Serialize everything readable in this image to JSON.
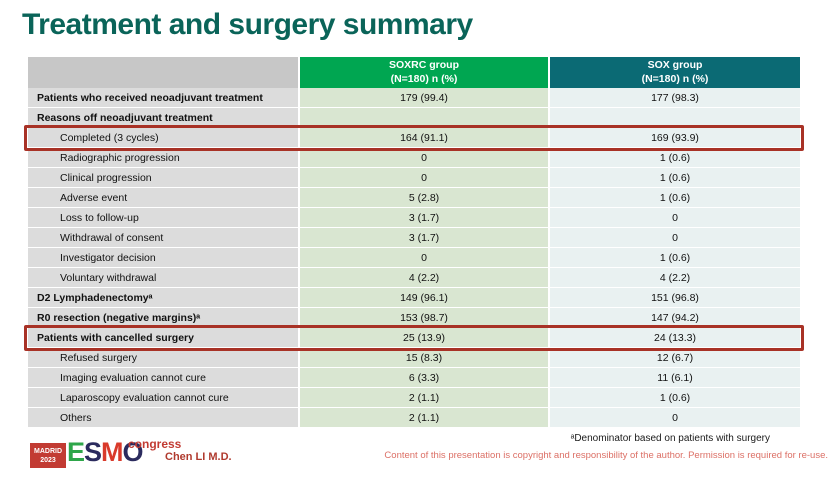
{
  "slide": {
    "title": "Treatment and surgery summary"
  },
  "colors": {
    "title_teal": "#0a6459",
    "soxrc_header_green": "#00a651",
    "sox_header_teal": "#0b6a74",
    "soxrc_cell_green": "#d9e6d1",
    "sox_cell_blue": "#e9f1f1",
    "label_cell_gray": "#dcdcdc",
    "highlight_red": "#a83226",
    "logo_red": "#c23b33"
  },
  "table": {
    "header": {
      "soxrc_line1": "SOXRC group",
      "soxrc_line2": "(N=180) n (%)",
      "sox_line1": "SOX group",
      "sox_line2": "(N=180) n (%)"
    },
    "rows": [
      {
        "label": "Patients who received neoadjuvant treatment",
        "soxrc": "179 (99.4)",
        "sox": "177 (98.3)"
      },
      {
        "label": "Reasons off neoadjuvant treatment",
        "soxrc": "",
        "sox": ""
      },
      {
        "label": "Completed (3 cycles)",
        "soxrc": "164 (91.1)",
        "sox": "169 (93.9)"
      },
      {
        "label": "Radiographic progression",
        "soxrc": "0",
        "sox": "1 (0.6)"
      },
      {
        "label": "Clinical progression",
        "soxrc": "0",
        "sox": "1 (0.6)"
      },
      {
        "label": "Adverse event",
        "soxrc": "5 (2.8)",
        "sox": "1 (0.6)"
      },
      {
        "label": "Loss to follow-up",
        "soxrc": "3 (1.7)",
        "sox": "0"
      },
      {
        "label": "Withdrawal of consent",
        "soxrc": "3 (1.7)",
        "sox": "0"
      },
      {
        "label": "Investigator decision",
        "soxrc": "0",
        "sox": "1 (0.6)"
      },
      {
        "label": "Voluntary withdrawal",
        "soxrc": "4 (2.2)",
        "sox": "4 (2.2)"
      },
      {
        "label": "D2 Lymphadenectomyᵃ",
        "soxrc": "149 (96.1)",
        "sox": "151 (96.8)"
      },
      {
        "label": "R0 resection (negative margins)ᵃ",
        "soxrc": "153 (98.7)",
        "sox": "147 (94.2)"
      },
      {
        "label": "Patients with cancelled surgery",
        "soxrc": "25 (13.9)",
        "sox": "24 (13.3)"
      },
      {
        "label": "Refused surgery",
        "soxrc": "15 (8.3)",
        "sox": "12 (6.7)"
      },
      {
        "label": "Imaging evaluation cannot cure",
        "soxrc": "6 (3.3)",
        "sox": "11 (6.1)"
      },
      {
        "label": "Laparoscopy evaluation cannot cure",
        "soxrc": "2 (1.1)",
        "sox": "1 (0.6)"
      },
      {
        "label": "Others",
        "soxrc": "2 (1.1)",
        "sox": "0"
      }
    ]
  },
  "footer": {
    "logo": {
      "madrid_line1": "MADRID",
      "madrid_line2": "2023",
      "esmo_e": "E",
      "esmo_s": "S",
      "esmo_m": "M",
      "esmo_o": "O",
      "congress": "congress"
    },
    "author": "Chen LI M.D.",
    "footnote": "ᵃDenominator based on patients with surgery",
    "copyright": "Content of this presentation is copyright and responsibility of the author. Permission is required for re-use."
  }
}
